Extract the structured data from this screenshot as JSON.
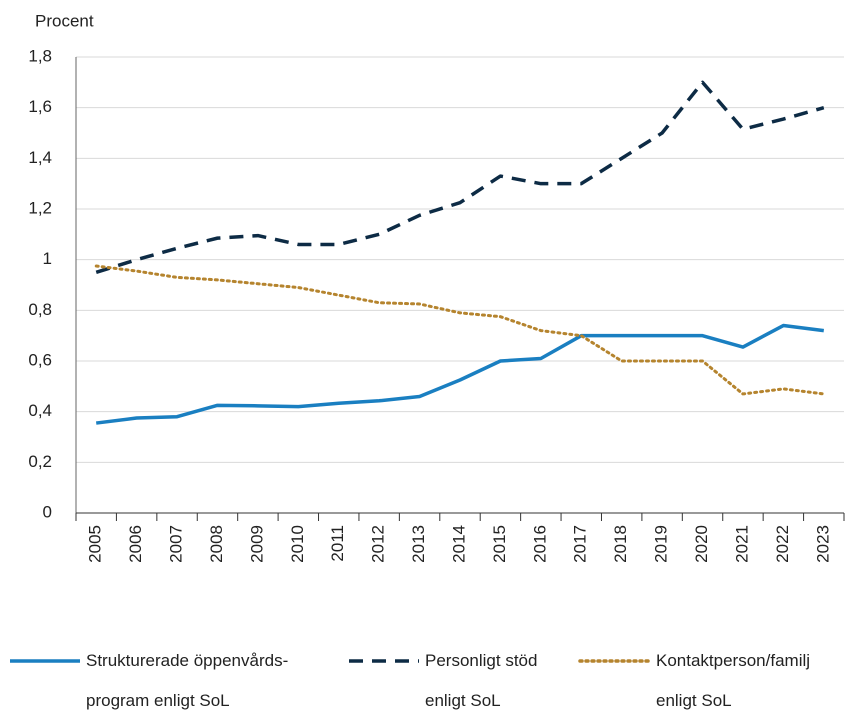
{
  "chart_data": {
    "type": "line",
    "y_label": "Procent",
    "categories": [
      "2005",
      "2006",
      "2007",
      "2008",
      "2009",
      "2010",
      "2011",
      "2012",
      "2013",
      "2014",
      "2015",
      "2016",
      "2017",
      "2018",
      "2019",
      "2020",
      "2021",
      "2022",
      "2023"
    ],
    "ylim": [
      0,
      1.8
    ],
    "yticks": [
      0,
      {
        "value": 0.2,
        "label": "0,2"
      },
      {
        "value": 0.4,
        "label": "0,4"
      },
      {
        "value": 0.6,
        "label": "0,6"
      },
      {
        "value": 0.8,
        "label": "0,8"
      },
      1,
      {
        "value": 1.2,
        "label": "1,2"
      },
      {
        "value": 1.4,
        "label": "1,4"
      },
      {
        "value": 1.6,
        "label": "1,6"
      },
      {
        "value": 1.8,
        "label": "1,8"
      }
    ],
    "grid": true,
    "series": [
      {
        "name": "Strukturerade öppenvårds-program enligt SoL",
        "color": "#1a7fc1",
        "dash": "solid",
        "values": [
          0.355,
          0.375,
          0.38,
          0.425,
          0.423,
          0.42,
          0.433,
          0.443,
          0.46,
          0.525,
          0.6,
          0.61,
          0.7,
          0.7,
          0.7,
          0.7,
          0.655,
          0.74,
          0.72
        ]
      },
      {
        "name": "Personligt stöd enligt SoL",
        "color": "#0d2b45",
        "dash": "dashed",
        "values": [
          0.95,
          1.0,
          1.045,
          1.085,
          1.095,
          1.06,
          1.06,
          1.1,
          1.175,
          1.225,
          1.33,
          1.3,
          1.3,
          1.4,
          1.5,
          1.7,
          1.515,
          1.555,
          1.6
        ]
      },
      {
        "name": "Kontaktperson/familj enligt SoL",
        "color": "#b5842e",
        "dash": "dotted",
        "values": [
          0.975,
          0.955,
          0.93,
          0.92,
          0.905,
          0.89,
          0.86,
          0.83,
          0.825,
          0.79,
          0.775,
          0.72,
          0.7,
          0.6,
          0.6,
          0.6,
          0.47,
          0.49,
          0.47
        ]
      }
    ]
  }
}
